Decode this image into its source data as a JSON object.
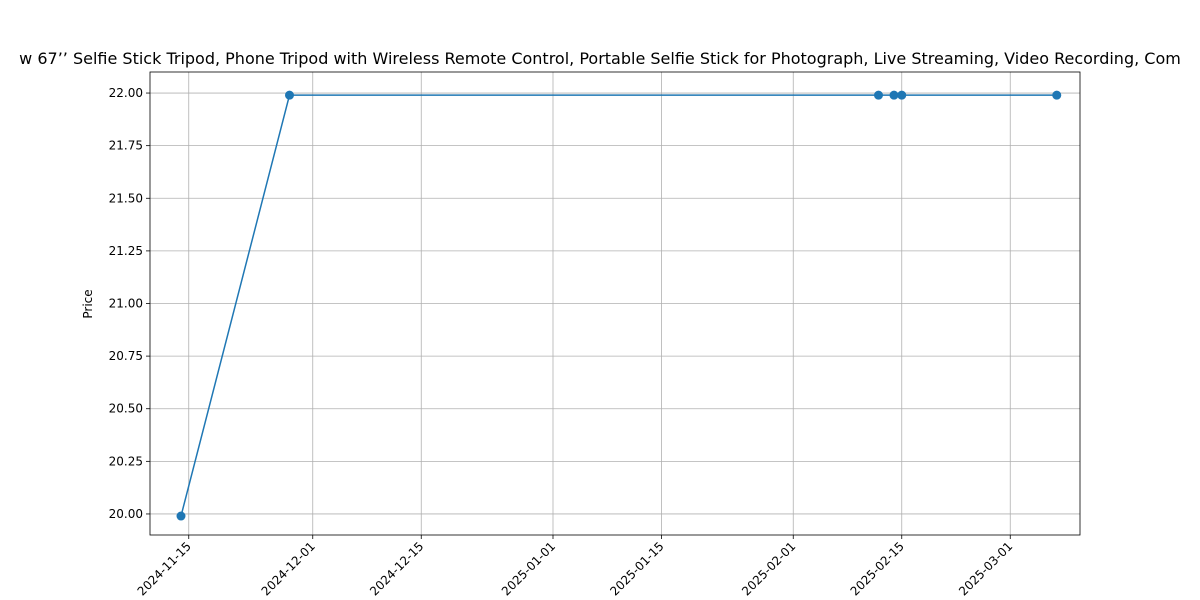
{
  "chart_data": {
    "type": "line",
    "title": "w 67’’ Selfie Stick Tripod, Phone Tripod with Wireless Remote Control, Portable Selfie Stick for Photograph, Live Streaming, Video Recording, Com",
    "xlabel": "",
    "ylabel": "Price",
    "x_axis_type": "date",
    "xlim": [
      "2024-11-10",
      "2025-03-10"
    ],
    "ylim": [
      19.9,
      22.1
    ],
    "grid": true,
    "x_ticks": [
      "2024-11-15",
      "2024-12-01",
      "2024-12-15",
      "2025-01-01",
      "2025-01-15",
      "2025-02-01",
      "2025-02-15",
      "2025-03-01"
    ],
    "y_ticks": [
      20.0,
      20.25,
      20.5,
      20.75,
      21.0,
      21.25,
      21.5,
      21.75,
      22.0
    ],
    "y_tick_decimals": 2,
    "x_tick_rotation": 45,
    "series": [
      {
        "color": "#1f77b4",
        "marker": "circle",
        "x": [
          "2024-11-14",
          "2024-11-28",
          "2025-02-12",
          "2025-02-14",
          "2025-02-15",
          "2025-03-07"
        ],
        "y": [
          19.99,
          21.99,
          21.99,
          21.99,
          21.99,
          21.99
        ]
      }
    ]
  }
}
